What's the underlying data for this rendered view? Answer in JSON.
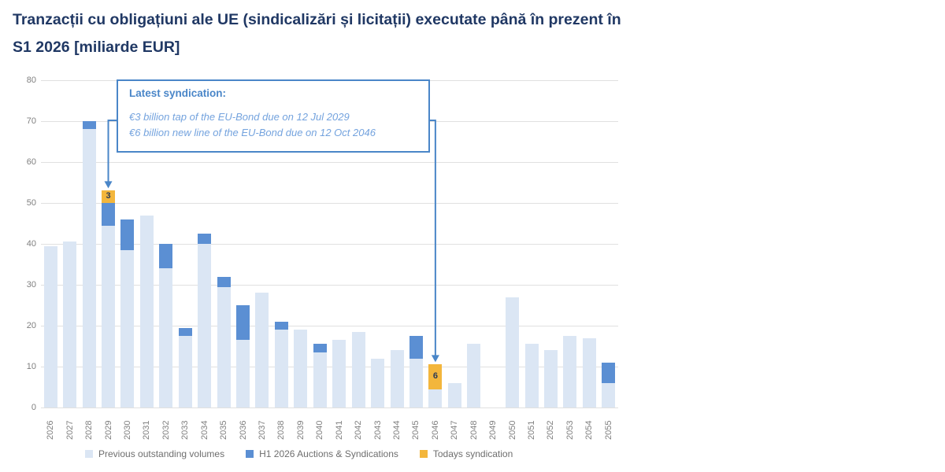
{
  "title": {
    "line1": "Tranzacții cu obligațiuni ale UE (sindicalizări și licitații) executate până în prezent în",
    "line2": "S1 2026 [miliarde EUR]"
  },
  "annotation": {
    "heading": "Latest syndication:",
    "line1": "€3 billion tap of the EU-Bond due on 12 Jul 2029",
    "line2": "€6 billion new line of the EU-Bond due on 12 Oct 2046"
  },
  "colors": {
    "accent": "#4A86C8",
    "annotation_text": "#74A3DE",
    "title_text": "#203864",
    "axis_text": "#7F7F7F",
    "gridline": "#E0E0E0",
    "bar_label_text": "#2B3A55",
    "background": "#FFFFFF"
  },
  "chart_data": {
    "type": "bar",
    "stacked": true,
    "title": "Tranzacții cu obligațiuni ale UE (sindicalizări și licitații) executate până în prezent în S1 2026 [miliarde EUR]",
    "xlabel": "",
    "ylabel": "",
    "ylim": [
      0,
      80
    ],
    "ytick_interval": 10,
    "grid": true,
    "legend_position": "bottom",
    "categories": [
      "2026",
      "2027",
      "2028",
      "2029",
      "2030",
      "2031",
      "2032",
      "2033",
      "2034",
      "2035",
      "2036",
      "2037",
      "2038",
      "2039",
      "2040",
      "2041",
      "2042",
      "2043",
      "2044",
      "2045",
      "2046",
      "2047",
      "2048",
      "2049",
      "2050",
      "2051",
      "2052",
      "2053",
      "2054",
      "2055"
    ],
    "series": [
      {
        "name": "Previous outstanding volumes",
        "color": "#DBE6F4",
        "values": [
          39.5,
          40.5,
          68,
          44.5,
          38.5,
          47,
          34,
          17.5,
          40,
          29.5,
          16.5,
          28,
          19,
          19,
          13.5,
          16.5,
          18.5,
          12,
          14,
          12,
          4.5,
          6,
          15.5,
          0,
          27,
          15.5,
          14,
          17.5,
          17,
          6
        ]
      },
      {
        "name": "H1 2026 Auctions & Syndications",
        "color": "#5B8FD3",
        "values": [
          0,
          0,
          2,
          5.5,
          7.5,
          0,
          6,
          2,
          2.5,
          2.5,
          8.5,
          0,
          2,
          0,
          2,
          0,
          0,
          0,
          0,
          5.5,
          0,
          0,
          0,
          0,
          0,
          0,
          0,
          0,
          0,
          5
        ]
      },
      {
        "name": "Todays syndication",
        "color": "#F3B63C",
        "values": [
          0,
          0,
          0,
          3,
          0,
          0,
          0,
          0,
          0,
          0,
          0,
          0,
          0,
          0,
          0,
          0,
          0,
          0,
          0,
          0,
          6,
          0,
          0,
          0,
          0,
          0,
          0,
          0,
          0,
          0
        ],
        "show_value_labels": true
      }
    ]
  }
}
